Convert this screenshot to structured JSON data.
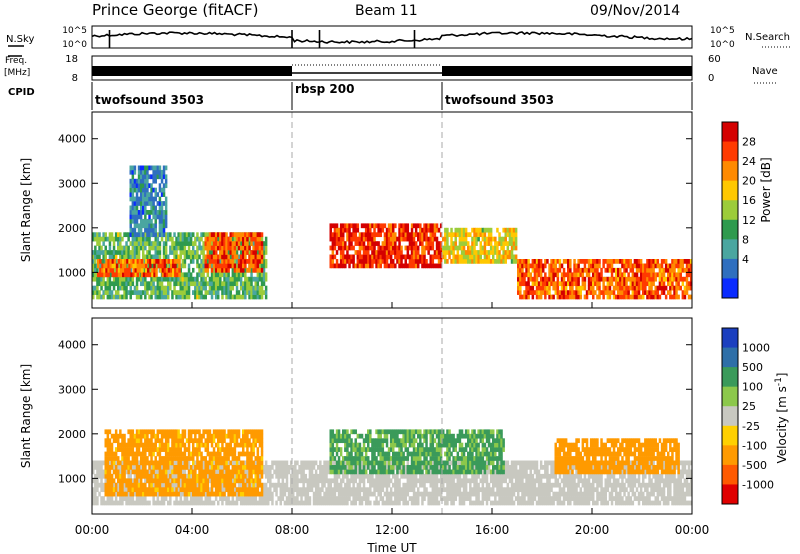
{
  "header": {
    "radar": "Prince George (fitACF)",
    "beam": "Beam 11",
    "date": "09/Nov/2014"
  },
  "side_labels": {
    "nsky": "N.Sky",
    "freq_line1": "Freq.",
    "freq_line2": "[MHz]",
    "cpid": "CPID",
    "nsearch": "N.Search",
    "nave": "Nave"
  },
  "noise_axis": {
    "left_ticks": [
      "10^5",
      "10^0"
    ],
    "right_ticks": [
      "10^5",
      "10^0"
    ]
  },
  "freq_axis": {
    "left_ticks": [
      "18",
      "8"
    ],
    "right_ticks": [
      "60",
      "0"
    ]
  },
  "cpid_segments": [
    {
      "label": "twofsound 3503",
      "start_hour": 0
    },
    {
      "label": "rbsp 200",
      "start_hour": 8
    },
    {
      "label": "twofsound 3503",
      "start_hour": 14
    }
  ],
  "x_axis": {
    "title": "Time UT",
    "ticks": [
      "00:00",
      "04:00",
      "08:00",
      "12:00",
      "16:00",
      "20:00",
      "00:00"
    ],
    "range_hours": [
      0,
      24
    ]
  },
  "chart_data": [
    {
      "type": "heatmap",
      "title": "",
      "xlabel": "Time UT",
      "ylabel": "Slant Range [km]",
      "ylim": [
        200,
        4600
      ],
      "yticks": [
        1000,
        2000,
        3000,
        4000
      ],
      "colorbar": {
        "label": "Power [dB]",
        "ticks": [
          "28",
          "24",
          "20",
          "16",
          "12",
          "8",
          "4"
        ],
        "colors": [
          "#d40000",
          "#ff3a00",
          "#ff8a00",
          "#ffc800",
          "#9ccc3a",
          "#2e9a4e",
          "#4aa6a0",
          "#2f6fbf",
          "#0a2bff"
        ]
      },
      "regions": [
        {
          "t": [
            0.0,
            7.0
          ],
          "r": [
            400,
            1900
          ],
          "level": 12
        },
        {
          "t": [
            0.2,
            3.5
          ],
          "r": [
            900,
            1300
          ],
          "level": 24
        },
        {
          "t": [
            4.5,
            6.8
          ],
          "r": [
            1000,
            1900
          ],
          "level": 26
        },
        {
          "t": [
            9.5,
            14.0
          ],
          "r": [
            1100,
            2100
          ],
          "level": 28
        },
        {
          "t": [
            14.0,
            17.0
          ],
          "r": [
            1200,
            2000
          ],
          "level": 18
        },
        {
          "t": [
            17.0,
            24.0
          ],
          "r": [
            400,
            1300
          ],
          "level": 25
        },
        {
          "t": [
            1.5,
            3.0
          ],
          "r": [
            1800,
            3400
          ],
          "level": 6
        }
      ]
    },
    {
      "type": "heatmap",
      "title": "",
      "xlabel": "Time UT",
      "ylabel": "Slant Range [km]",
      "ylim": [
        200,
        4600
      ],
      "yticks": [
        1000,
        2000,
        3000,
        4000
      ],
      "colorbar": {
        "label": "Velocity [m s^-1]",
        "ticks": [
          "1000",
          "500",
          "100",
          "25",
          "-25",
          "-100",
          "-500",
          "-1000"
        ],
        "colors": [
          "#1b3fbf",
          "#2e6fa8",
          "#3a9a5a",
          "#8cc84b",
          "#c8c8c0",
          "#ffd000",
          "#ff9a00",
          "#ff5a00",
          "#e00000"
        ]
      },
      "regions": [
        {
          "t": [
            0.0,
            24.0
          ],
          "r": [
            400,
            1400
          ],
          "level": 0
        },
        {
          "t": [
            0.5,
            6.8
          ],
          "r": [
            600,
            2100
          ],
          "level": -150
        },
        {
          "t": [
            9.5,
            16.5
          ],
          "r": [
            1100,
            2100
          ],
          "level": 120
        },
        {
          "t": [
            18.5,
            23.5
          ],
          "r": [
            1100,
            1900
          ],
          "level": -200
        }
      ]
    }
  ]
}
